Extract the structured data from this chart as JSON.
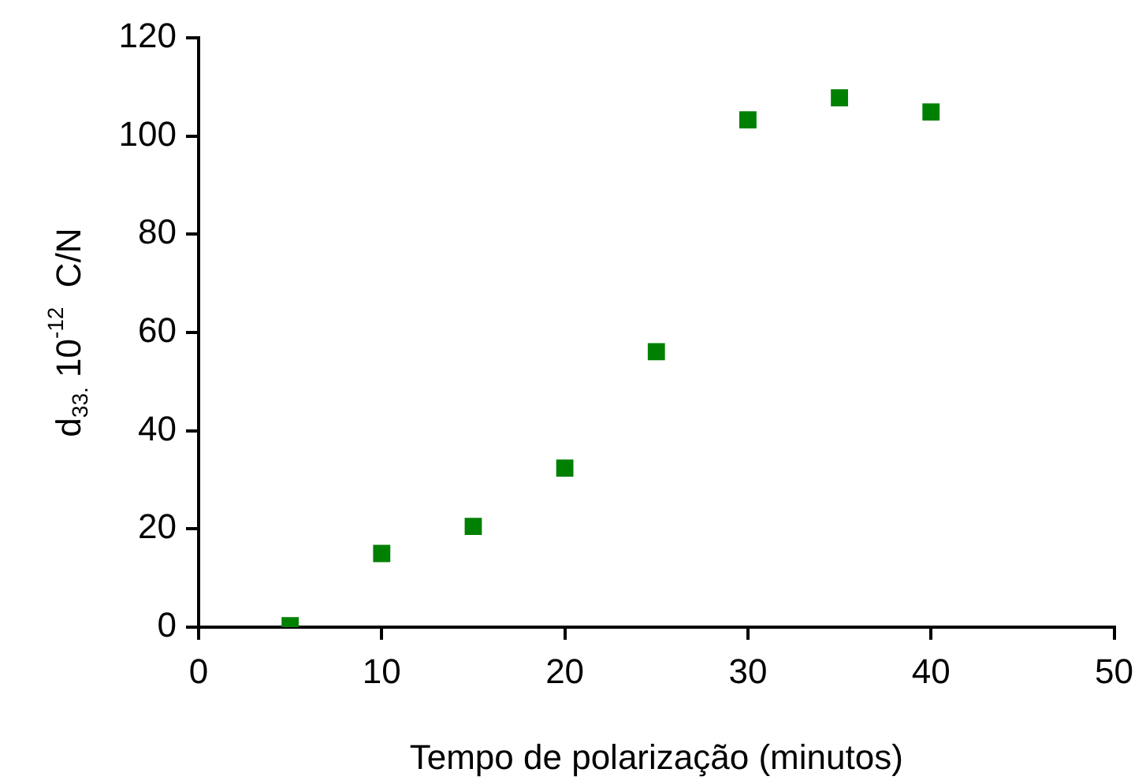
{
  "chart_data": {
    "type": "scatter",
    "xlabel": "Tempo de polarização (minutos)",
    "ylabel": "d$_{33.}$ 10$^{-12}$  C/N",
    "x": [
      5,
      10,
      15,
      20,
      25,
      30,
      35,
      40
    ],
    "series": [
      {
        "color": "#008000",
        "values": [
          0.3,
          15,
          20.5,
          32.4,
          56.1,
          103.3,
          107.8,
          104.9
        ]
      }
    ],
    "xlim": [
      0,
      50
    ],
    "xticks": [
      0,
      10,
      20,
      30,
      40,
      50
    ],
    "ylim": [
      0,
      120
    ],
    "yticks": [
      0,
      20,
      40,
      60,
      80,
      100,
      120
    ],
    "marker": "square",
    "grid": false,
    "legend": false
  }
}
